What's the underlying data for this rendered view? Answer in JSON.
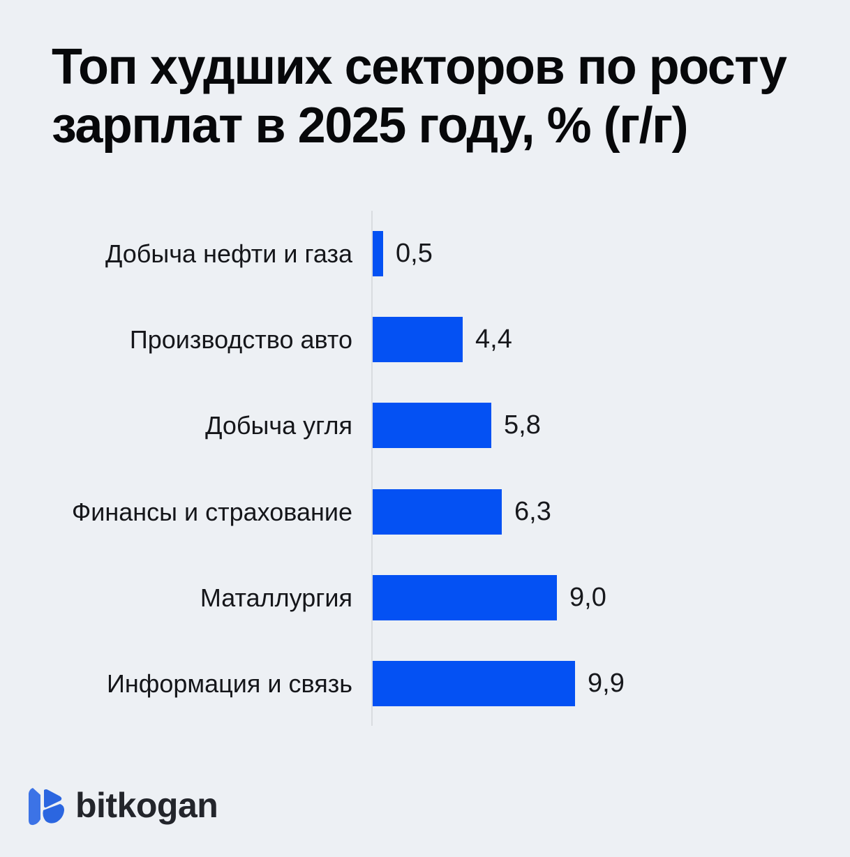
{
  "title": {
    "line1": "Топ худших секторов по росту",
    "line2": "зарплат в 2025 году, % (г/г)"
  },
  "chart_data": {
    "type": "bar",
    "orientation": "horizontal",
    "title": "Топ худших секторов по росту зарплат в 2025 году, % (г/г)",
    "categories": [
      "Добыча нефти и газа",
      "Производство авто",
      "Добыча угля",
      "Финансы и страхование",
      "Маталлургия",
      "Информация и связь"
    ],
    "values": [
      0.5,
      4.4,
      5.8,
      6.3,
      9.0,
      9.9
    ],
    "value_labels": [
      "0,5",
      "4,4",
      "5,8",
      "6,3",
      "9,0",
      "9,9"
    ],
    "xlabel": "",
    "ylabel": "",
    "xlim": [
      0,
      10
    ],
    "grid": false,
    "legend": "none",
    "bar_color": "#0451f3",
    "axis_color": "#d9dce0"
  },
  "footer": {
    "logo_text": "bitkogan"
  },
  "colors": {
    "background": "#edf0f4",
    "title_text": "#07080a",
    "label_text": "#15161a",
    "logo_icon_bar": "#3c73e6",
    "logo_icon_mark": "#2b66e0"
  }
}
